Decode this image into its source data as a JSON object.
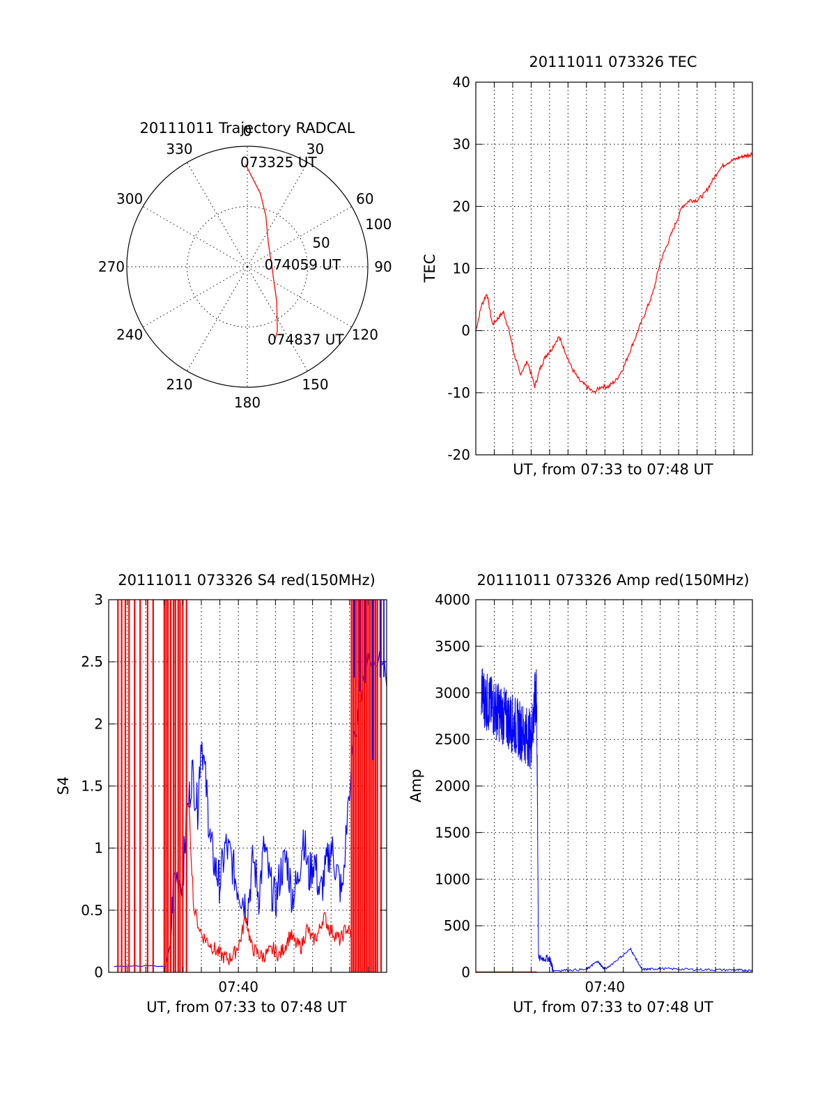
{
  "chart_data": [
    {
      "type": "polar",
      "title": "20111011 Trajectory RADCAL",
      "angle_labels": [
        "0",
        "30",
        "60",
        "90",
        "120",
        "150",
        "180",
        "210",
        "240",
        "270",
        "300",
        "330"
      ],
      "radius_labels": [
        "50",
        "100"
      ],
      "rlim": [
        0,
        100
      ],
      "grid": true,
      "series": [
        {
          "color": "#ff0000",
          "points": [
            [
              -1,
              85
            ],
            [
              10,
              62
            ],
            [
              20,
              45
            ],
            [
              40,
              27
            ],
            [
              65,
              21
            ],
            [
              90,
              20.5
            ],
            [
              115,
              24
            ],
            [
              140,
              38
            ],
            [
              155,
              59
            ],
            [
              160,
              66
            ]
          ]
        }
      ],
      "annotations": [
        {
          "text": "073325 UT",
          "azimuth": 0,
          "r": 85
        },
        {
          "text": "074059 UT",
          "azimuth": 90,
          "r": 20
        },
        {
          "text": "074837 UT",
          "azimuth": 160,
          "r": 66
        }
      ]
    },
    {
      "type": "line",
      "title": "20111011 073326 TEC",
      "xlabel": "UT, from 07:33 to 07:48 UT",
      "ylabel": "TEC",
      "ylim": [
        -20,
        40
      ],
      "yticks": [
        "-20",
        "-10",
        "0",
        "10",
        "20",
        "30",
        "40"
      ],
      "xlim_minutes": [
        0,
        15
      ],
      "grid": true,
      "series": [
        {
          "color": "#ff0000",
          "x": [
            0,
            0.3,
            0.6,
            0.9,
            1.2,
            1.5,
            1.8,
            2.1,
            2.4,
            2.8,
            3.2,
            3.5,
            3.8,
            4.1,
            4.5,
            4.8,
            5.2,
            5.6,
            6.0,
            6.4,
            6.8,
            7.2,
            7.6,
            8.0,
            8.4,
            8.8,
            9.2,
            9.6,
            10.0,
            10.4,
            10.8,
            11.2,
            11.6,
            12.0,
            12.4,
            12.8,
            13.2,
            13.6,
            14.0,
            14.4,
            14.7,
            15.0
          ],
          "y": [
            0,
            4,
            6,
            1,
            2,
            3,
            0,
            -4,
            -7,
            -5,
            -9,
            -6,
            -4,
            -3,
            -1,
            -3,
            -6,
            -8,
            -9,
            -10,
            -9,
            -9,
            -8,
            -6,
            -3,
            0,
            3,
            6,
            11,
            14,
            17,
            20,
            21,
            21,
            22,
            24,
            26,
            27,
            27.5,
            28,
            28.2,
            28.5
          ]
        }
      ]
    },
    {
      "type": "line",
      "title": "20111011 073326 S4 red(150MHz)",
      "xlabel": "UT, from 07:33 to 07:48 UT",
      "ylabel": "S4",
      "ylim": [
        0,
        3
      ],
      "yticks": [
        "0",
        "0.5",
        "1",
        "1.5",
        "2",
        "2.5",
        "3"
      ],
      "xticks": [
        "07:40"
      ],
      "xlim_minutes": [
        0,
        15
      ],
      "grid": true,
      "series": [
        {
          "color": "#0000ff",
          "x": [
            0.3,
            1.5,
            3.3,
            3.5,
            4.0,
            4.2,
            4.5,
            4.8,
            5.0,
            5.3,
            5.5,
            5.8,
            6.0,
            6.3,
            6.6,
            6.9,
            7.2,
            7.5,
            7.8,
            8.1,
            8.4,
            8.7,
            9.0,
            9.3,
            9.6,
            9.9,
            10.2,
            10.5,
            10.8,
            11.1,
            11.4,
            11.7,
            12.0,
            12.3,
            12.6,
            13.0,
            14.0,
            15.0
          ],
          "y": [
            0.05,
            0.05,
            0.05,
            0.75,
            0.74,
            1.2,
            1.6,
            1.3,
            1.9,
            1.4,
            1.0,
            0.8,
            0.7,
            1.0,
            0.9,
            0.7,
            0.6,
            0.5,
            0.9,
            0.6,
            1.0,
            0.7,
            0.55,
            0.8,
            0.9,
            0.6,
            0.7,
            1.1,
            0.75,
            0.9,
            0.6,
            0.8,
            1.0,
            0.8,
            0.6,
            1.5,
            2.6,
            2.3
          ]
        },
        {
          "color": "#ff0000",
          "x": [
            4.3,
            4.6,
            5.0,
            5.3,
            5.6,
            5.9,
            6.2,
            6.5,
            6.8,
            7.1,
            7.4,
            7.7,
            8.0,
            8.3,
            8.6,
            8.9,
            9.2,
            9.5,
            9.8,
            10.1,
            10.4,
            10.7,
            11.0,
            11.3,
            11.6,
            11.9,
            12.2,
            12.5,
            12.8,
            13.1
          ],
          "y": [
            1.4,
            0.5,
            0.3,
            0.25,
            0.2,
            0.15,
            0.12,
            0.1,
            0.15,
            0.25,
            0.45,
            0.2,
            0.15,
            0.12,
            0.15,
            0.18,
            0.13,
            0.2,
            0.3,
            0.22,
            0.2,
            0.35,
            0.25,
            0.3,
            0.45,
            0.35,
            0.3,
            0.25,
            0.35,
            0.3
          ]
        }
      ]
    },
    {
      "type": "line",
      "title": "20111011 073326 Amp red(150MHz)",
      "xlabel": "UT, from 07:33 to 07:48 UT",
      "ylabel": "Amp",
      "ylim": [
        0,
        4000
      ],
      "yticks": [
        "0",
        "500",
        "1000",
        "1500",
        "2000",
        "2500",
        "3000",
        "3500",
        "4000"
      ],
      "xticks": [
        "07:40"
      ],
      "xlim_minutes": [
        0,
        15
      ],
      "grid": true,
      "series": [
        {
          "color": "#ff0000",
          "x": [
            0,
            3.3
          ],
          "y": [
            5,
            5
          ]
        },
        {
          "color": "#0000ff",
          "x": [
            0.3,
            0.6,
            0.9,
            1.2,
            1.5,
            1.8,
            2.1,
            2.4,
            2.7,
            3.0,
            3.2,
            3.3,
            3.4,
            4.0,
            4.2,
            6.0,
            6.6,
            7.0,
            8.4,
            9.0,
            10.0,
            12.0,
            14.0,
            15.0
          ],
          "y": [
            3000,
            2900,
            2850,
            2800,
            2750,
            2700,
            2650,
            2600,
            2550,
            2500,
            2900,
            2950,
            150,
            150,
            20,
            30,
            120,
            30,
            250,
            30,
            40,
            30,
            25,
            20
          ]
        }
      ]
    }
  ]
}
